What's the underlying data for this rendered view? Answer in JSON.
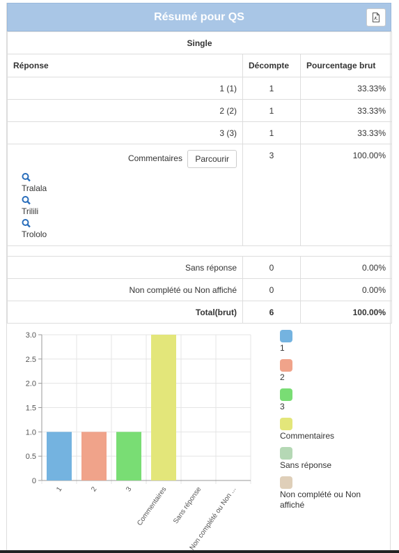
{
  "header": {
    "title": "Résumé pour QS",
    "pdf_icon": "pdf-file-icon"
  },
  "table": {
    "question_title": "Single",
    "columns": [
      "Réponse",
      "Décompte",
      "Pourcentage brut"
    ],
    "rows": [
      {
        "answer": "1 (1)",
        "count": "1",
        "percent": "33.33%"
      },
      {
        "answer": "2 (2)",
        "count": "1",
        "percent": "33.33%"
      },
      {
        "answer": "3 (3)",
        "count": "1",
        "percent": "33.33%"
      }
    ],
    "comments_row": {
      "label": "Commentaires",
      "browse_label": "Parcourir",
      "count": "3",
      "percent": "100.00%",
      "icon": "magnifier-icon",
      "items": [
        "Tralala",
        "Trilili",
        "Trololo"
      ]
    },
    "no_answer": {
      "label": "Sans réponse",
      "count": "0",
      "percent": "0.00%"
    },
    "not_completed": {
      "label": "Non complété ou Non affiché",
      "count": "0",
      "percent": "0.00%"
    },
    "total": {
      "label": "Total(brut)",
      "count": "6",
      "percent": "100.00%"
    }
  },
  "chart_data": {
    "type": "bar",
    "categories": [
      "1",
      "2",
      "3",
      "Commentaires",
      "Sans réponse",
      "Non complété ou Non ..."
    ],
    "values": [
      1,
      1,
      1,
      3,
      0,
      0
    ],
    "colors": [
      "#74b3e0",
      "#f0a38a",
      "#79dd74",
      "#e3e67a",
      "#b5d8b5",
      "#dfcfb9"
    ],
    "ylim": [
      0,
      3
    ],
    "yticks": [
      "0",
      "0.5",
      "1.0",
      "1.5",
      "2.0",
      "2.5",
      "3.0"
    ],
    "grid": true,
    "legend_position": "right",
    "legend": [
      "1",
      "2",
      "3",
      "Commentaires",
      "Sans réponse",
      "Non complété ou Non affiché"
    ]
  }
}
